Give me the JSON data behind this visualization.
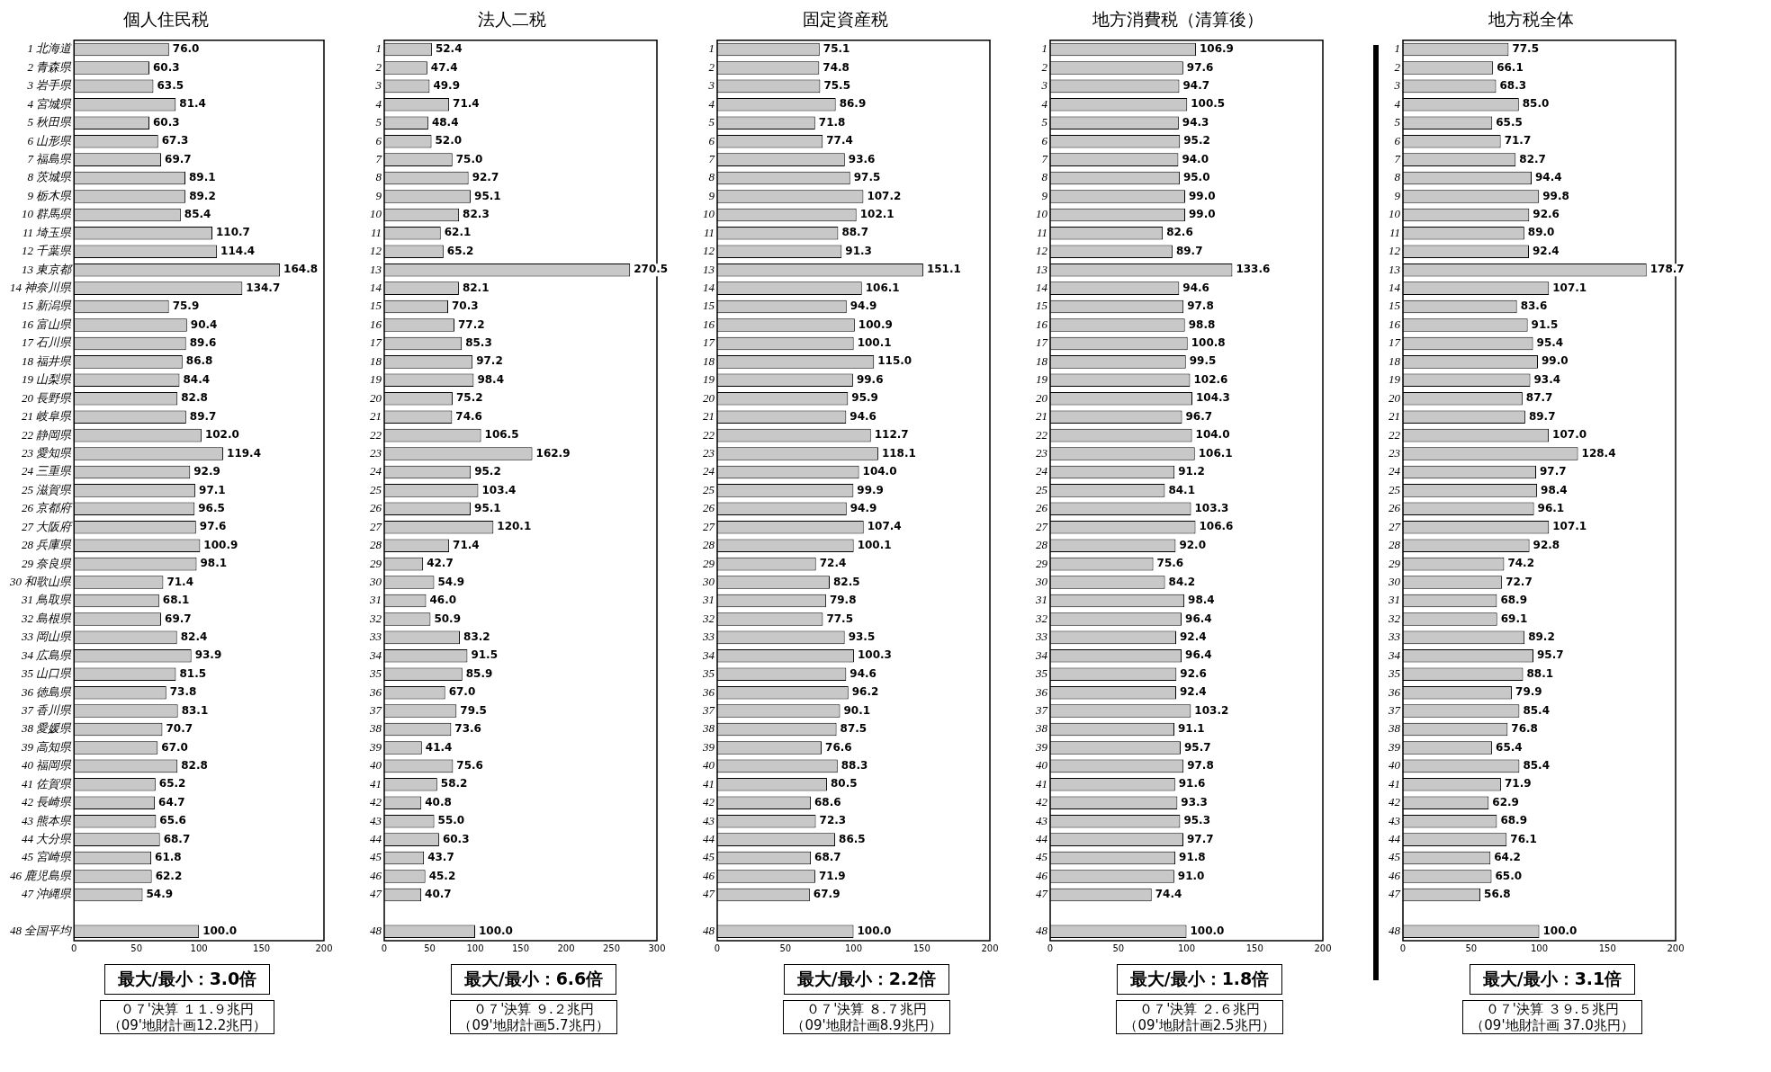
{
  "chart_data": [
    {
      "type": "bar",
      "orientation": "horizontal",
      "title": "個人住民税",
      "color": "#c8c8c8",
      "xlim": [
        0,
        200
      ],
      "xticks": [
        0,
        50,
        100,
        150,
        200
      ],
      "categories": [
        "1 北海道",
        "2 青森県",
        "3 岩手県",
        "4 宮城県",
        "5 秋田県",
        "6 山形県",
        "7 福島県",
        "8 茨城県",
        "9 栃木県",
        "10 群馬県",
        "11 埼玉県",
        "12 千葉県",
        "13 東京都",
        "14 神奈川県",
        "15 新潟県",
        "16 富山県",
        "17 石川県",
        "18 福井県",
        "19 山梨県",
        "20 長野県",
        "21 岐阜県",
        "22 静岡県",
        "23 愛知県",
        "24 三重県",
        "25 滋賀県",
        "26 京都府",
        "27 大阪府",
        "28 兵庫県",
        "29 奈良県",
        "30 和歌山県",
        "31 鳥取県",
        "32 島根県",
        "33 岡山県",
        "34 広島県",
        "35 山口県",
        "36 徳島県",
        "37 香川県",
        "38 愛媛県",
        "39 高知県",
        "40 福岡県",
        "41 佐賀県",
        "42 長崎県",
        "43 熊本県",
        "44 大分県",
        "45 宮崎県",
        "46 鹿児島県",
        "47 沖縄県",
        null,
        "48 全国平均"
      ],
      "values": [
        76.0,
        60.3,
        63.5,
        81.4,
        60.3,
        67.3,
        69.7,
        89.1,
        89.2,
        85.4,
        110.7,
        114.4,
        164.8,
        134.7,
        75.9,
        90.4,
        89.6,
        86.8,
        84.4,
        82.8,
        89.7,
        102.0,
        119.4,
        92.9,
        97.1,
        96.5,
        97.6,
        100.9,
        98.1,
        71.4,
        68.1,
        69.7,
        82.4,
        93.9,
        81.5,
        73.8,
        83.1,
        70.7,
        67.0,
        82.8,
        65.2,
        64.7,
        65.6,
        68.7,
        61.8,
        62.2,
        54.9,
        null,
        100.0
      ],
      "value_labels": [
        "76.0",
        "60.3",
        "63.5",
        "81.4",
        "60.3",
        "67.3",
        "69.7",
        "89.1",
        "89.2",
        "85.4",
        "110.7",
        "114.4",
        "164.8",
        "134.7",
        "75.9",
        "90.4",
        "89.6",
        "86.8",
        "84.4",
        "82.8",
        "89.7",
        "102.0",
        "119.4",
        "92.9",
        "97.1",
        "96.5",
        "97.6",
        "100.9",
        "98.1",
        "71.4",
        "68.1",
        "69.7",
        "82.4",
        "93.9",
        "81.5",
        "73.8",
        "83.1",
        "70.7",
        "67.0",
        "82.8",
        "65.2",
        "64.7",
        "65.6",
        "68.7",
        "61.8",
        "62.2",
        "54.9",
        null,
        "100.0"
      ],
      "annotations": [
        "最大/最小：3.0倍",
        "０７'決算 １１.９兆円",
        "（09'地財計画12.2兆円）"
      ]
    },
    {
      "type": "bar",
      "orientation": "horizontal",
      "title": "法人二税",
      "color": "#c8c8c8",
      "xlim": [
        0,
        300
      ],
      "xticks": [
        0,
        50,
        100,
        150,
        200,
        250,
        300
      ],
      "categories": [
        "1",
        "2",
        "3",
        "4",
        "5",
        "6",
        "7",
        "8",
        "9",
        "10",
        "11",
        "12",
        "13",
        "14",
        "15",
        "16",
        "17",
        "18",
        "19",
        "20",
        "21",
        "22",
        "23",
        "24",
        "25",
        "26",
        "27",
        "28",
        "29",
        "30",
        "31",
        "32",
        "33",
        "34",
        "35",
        "36",
        "37",
        "38",
        "39",
        "40",
        "41",
        "42",
        "43",
        "44",
        "45",
        "46",
        "47",
        null,
        "48"
      ],
      "values": [
        52.4,
        47.4,
        49.9,
        71.4,
        48.4,
        52.0,
        75.0,
        92.7,
        95.1,
        82.3,
        62.1,
        65.2,
        270.5,
        82.1,
        70.3,
        77.2,
        85.3,
        97.2,
        98.4,
        75.2,
        74.6,
        106.5,
        162.9,
        95.2,
        103.4,
        95.1,
        120.1,
        71.4,
        42.7,
        54.9,
        46.0,
        50.9,
        83.2,
        91.5,
        85.9,
        67.0,
        79.5,
        73.6,
        41.4,
        75.6,
        58.2,
        40.8,
        55.0,
        60.3,
        43.7,
        45.2,
        40.7,
        null,
        100.0
      ],
      "value_labels": [
        "52.4",
        "47.4",
        "49.9",
        "71.4",
        "48.4",
        "52.0",
        "75.0",
        "92.7",
        "95.1",
        "82.3",
        "62.1",
        "65.2",
        "270.5",
        "82.1",
        "70.3",
        "77.2",
        "85.3",
        "97.2",
        "98.4",
        "75.2",
        "74.6",
        "106.5",
        "162.9",
        "95.2",
        "103.4",
        "95.1",
        "120.1",
        "71.4",
        "42.7",
        "54.9",
        "46.0",
        "50.9",
        "83.2",
        "91.5",
        "85.9",
        "67.0",
        "79.5",
        "73.6",
        "41.4",
        "75.6",
        "58.2",
        "40.8",
        "55.0",
        "60.3",
        "43.7",
        "45.2",
        "40.7",
        null,
        "100.0"
      ],
      "annotations": [
        "最大/最小：6.6倍",
        "０７'決算 ９.２兆円",
        "（09'地財計画5.7兆円）"
      ]
    },
    {
      "type": "bar",
      "orientation": "horizontal",
      "title": "固定資産税",
      "color": "#c8c8c8",
      "xlim": [
        0,
        200
      ],
      "xticks": [
        0,
        50,
        100,
        150,
        200
      ],
      "categories": [
        "1",
        "2",
        "3",
        "4",
        "5",
        "6",
        "7",
        "8",
        "9",
        "10",
        "11",
        "12",
        "13",
        "14",
        "15",
        "16",
        "17",
        "18",
        "19",
        "20",
        "21",
        "22",
        "23",
        "24",
        "25",
        "26",
        "27",
        "28",
        "29",
        "30",
        "31",
        "32",
        "33",
        "34",
        "35",
        "36",
        "37",
        "38",
        "39",
        "40",
        "41",
        "42",
        "43",
        "44",
        "45",
        "46",
        "47",
        null,
        "48"
      ],
      "values": [
        75.1,
        74.8,
        75.5,
        86.9,
        71.8,
        77.4,
        93.6,
        97.5,
        107.2,
        102.1,
        88.7,
        91.3,
        151.1,
        106.1,
        94.9,
        100.9,
        100.1,
        115.0,
        99.6,
        95.9,
        94.6,
        112.7,
        118.1,
        104.0,
        99.9,
        94.9,
        107.4,
        100.1,
        72.4,
        82.5,
        79.8,
        77.5,
        93.5,
        100.3,
        94.6,
        96.2,
        90.1,
        87.5,
        76.6,
        88.3,
        80.5,
        68.6,
        72.3,
        86.5,
        68.7,
        71.9,
        67.9,
        null,
        100.0
      ],
      "value_labels": [
        "75.1",
        "74.8",
        "75.5",
        "86.9",
        "71.8",
        "77.4",
        "93.6",
        "97.5",
        "107.2",
        "102.1",
        "88.7",
        "91.3",
        "151.1",
        "106.1",
        "94.9",
        "100.9",
        "100.1",
        "115.0",
        "99.6",
        "95.9",
        "94.6",
        "112.7",
        "118.1",
        "104.0",
        "99.9",
        "94.9",
        "107.4",
        "100.1",
        "72.4",
        "82.5",
        "79.8",
        "77.5",
        "93.5",
        "100.3",
        "94.6",
        "96.2",
        "90.1",
        "87.5",
        "76.6",
        "88.3",
        "80.5",
        "68.6",
        "72.3",
        "86.5",
        "68.7",
        "71.9",
        "67.9",
        null,
        "100.0"
      ],
      "annotations": [
        "最大/最小：2.2倍",
        "０７'決算 ８.７兆円",
        "（09'地財計画8.9兆円）"
      ]
    },
    {
      "type": "bar",
      "orientation": "horizontal",
      "title": "地方消費税（清算後）",
      "color": "#c8c8c8",
      "xlim": [
        0,
        200
      ],
      "xticks": [
        0,
        50,
        100,
        150,
        200
      ],
      "categories": [
        "1",
        "2",
        "3",
        "4",
        "5",
        "6",
        "7",
        "8",
        "9",
        "10",
        "11",
        "12",
        "13",
        "14",
        "15",
        "16",
        "17",
        "18",
        "19",
        "20",
        "21",
        "22",
        "23",
        "24",
        "25",
        "26",
        "27",
        "28",
        "29",
        "30",
        "31",
        "32",
        "33",
        "34",
        "35",
        "36",
        "37",
        "38",
        "39",
        "40",
        "41",
        "42",
        "43",
        "44",
        "45",
        "46",
        "47",
        null,
        "48"
      ],
      "values": [
        106.9,
        97.6,
        94.7,
        100.5,
        94.3,
        95.2,
        94.0,
        95.0,
        99.0,
        99.0,
        82.6,
        89.7,
        133.6,
        94.6,
        97.8,
        98.8,
        100.8,
        99.5,
        102.6,
        104.3,
        96.7,
        104.0,
        106.1,
        91.2,
        84.1,
        103.3,
        106.6,
        92.0,
        75.6,
        84.2,
        98.4,
        96.4,
        92.4,
        96.4,
        92.6,
        92.4,
        103.2,
        91.1,
        95.7,
        97.8,
        91.6,
        93.3,
        95.3,
        97.7,
        91.8,
        91.0,
        74.4,
        null,
        100.0
      ],
      "value_labels": [
        "106.9",
        "97.6",
        "94.7",
        "100.5",
        "94.3",
        "95.2",
        "94.0",
        "95.0",
        "99.0",
        "99.0",
        "82.6",
        "89.7",
        "133.6",
        "94.6",
        "97.8",
        "98.8",
        "100.8",
        "99.5",
        "102.6",
        "104.3",
        "96.7",
        "104.0",
        "106.1",
        "91.2",
        "84.1",
        "103.3",
        "106.6",
        "92.0",
        "75.6",
        "84.2",
        "98.4",
        "96.4",
        "92.4",
        "96.4",
        "92.6",
        "92.4",
        "103.2",
        "91.1",
        "95.7",
        "97.8",
        "91.6",
        "93.3",
        "95.3",
        "97.7",
        "91.8",
        "91.0",
        "74.4",
        null,
        "100.0"
      ],
      "annotations": [
        "最大/最小：1.8倍",
        "０７'決算 ２.６兆円",
        "（09'地財計画2.5兆円）"
      ]
    },
    {
      "type": "bar",
      "orientation": "horizontal",
      "title": "地方税全体",
      "color": "#c8c8c8",
      "xlim": [
        0,
        200
      ],
      "xticks": [
        0,
        50,
        100,
        150,
        200
      ],
      "categories": [
        "1",
        "2",
        "3",
        "4",
        "5",
        "6",
        "7",
        "8",
        "9",
        "10",
        "11",
        "12",
        "13",
        "14",
        "15",
        "16",
        "17",
        "18",
        "19",
        "20",
        "21",
        "22",
        "23",
        "24",
        "25",
        "26",
        "27",
        "28",
        "29",
        "30",
        "31",
        "32",
        "33",
        "34",
        "35",
        "36",
        "37",
        "38",
        "39",
        "40",
        "41",
        "42",
        "43",
        "44",
        "45",
        "46",
        "47",
        null,
        "48"
      ],
      "values": [
        77.5,
        66.1,
        68.3,
        85.0,
        65.5,
        71.7,
        82.7,
        94.4,
        99.8,
        92.6,
        89.0,
        92.4,
        178.7,
        107.1,
        83.6,
        91.5,
        95.4,
        99.0,
        93.4,
        87.7,
        89.7,
        107.0,
        128.4,
        97.7,
        98.4,
        96.1,
        107.1,
        92.8,
        74.2,
        72.7,
        68.9,
        69.1,
        89.2,
        95.7,
        88.1,
        79.9,
        85.4,
        76.8,
        65.4,
        85.4,
        71.9,
        62.9,
        68.9,
        76.1,
        64.2,
        65.0,
        56.8,
        null,
        100.0
      ],
      "value_labels": [
        "77.5",
        "66.1",
        "68.3",
        "85.0",
        "65.5",
        "71.7",
        "82.7",
        "94.4",
        "99.8",
        "92.6",
        "89.0",
        "92.4",
        "178.7",
        "107.1",
        "83.6",
        "91.5",
        "95.4",
        "99.0",
        "93.4",
        "87.7",
        "89.7",
        "107.0",
        "128.4",
        "97.7",
        "98.4",
        "96.1",
        "107.1",
        "92.8",
        "74.2",
        "72.7",
        "68.9",
        "69.1",
        "89.2",
        "95.7",
        "88.1",
        "79.9",
        "85.4",
        "76.8",
        "65.4",
        "85.4",
        "71.9",
        "62.9",
        "68.9",
        "76.1",
        "64.2",
        "65.0",
        "56.8",
        null,
        "100.0"
      ],
      "annotations": [
        "最大/最小：3.1倍",
        "０７'決算 ３９.５兆円",
        "（09'地財計画 37.0兆円）"
      ]
    }
  ]
}
